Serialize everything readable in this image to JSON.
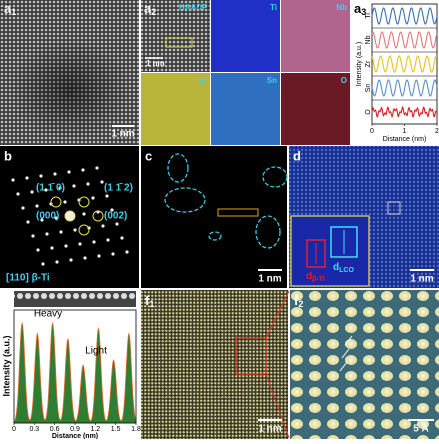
{
  "panels": {
    "a1": {
      "label": "a",
      "sub": "1",
      "scale": "1 nm"
    },
    "a2": {
      "label": "a",
      "sub": "2",
      "maps": [
        "HAADF",
        "Ti",
        "Nb",
        "Zr",
        "Sn",
        "O"
      ],
      "scale": "1 nm"
    },
    "a3": {
      "label": "a",
      "sub": "3"
    },
    "b": {
      "label": "b",
      "spots": [
        "(1 1̄ 0)",
        "(1 1̄ 2)",
        "(000)",
        "(002)"
      ],
      "zone": "[110] β-Ti"
    },
    "c": {
      "label": "c",
      "scale": "1 nm"
    },
    "d": {
      "label": "d",
      "scale": "1 nm",
      "d1": "d",
      "d1sub": "β-Ti",
      "d2": "d",
      "d2sub": "LCO"
    },
    "e": {
      "label": "e"
    },
    "f1": {
      "label": "f",
      "sub": "1",
      "scale": "1 nm"
    },
    "f2": {
      "label": "f",
      "sub": "2",
      "scale": "5 Å"
    }
  },
  "chart_data": [
    {
      "type": "line",
      "ylabel": "Intensity (a.u.)",
      "xlabel": "Distance (nm)",
      "xlim": [
        0,
        2
      ],
      "xticks": [
        0,
        1,
        2
      ],
      "series": [
        {
          "name": "Ti",
          "color": "#3a6fb0"
        },
        {
          "name": "Nb",
          "color": "#e07a7a"
        },
        {
          "name": "Zr",
          "color": "#e8c21a"
        },
        {
          "name": "Sn",
          "color": "#5b8fc4"
        },
        {
          "name": "O",
          "color": "#d62020"
        }
      ]
    },
    {
      "type": "area",
      "ylabel": "Intensity (a.u.)",
      "xlabel": "Distance (nm)",
      "xlim": [
        0,
        1.8
      ],
      "xticks": [
        0,
        0.3,
        0.6,
        0.9,
        1.2,
        1.5,
        1.8
      ],
      "annotations": [
        "Heavy",
        "Light"
      ],
      "color": "#2f7d32"
    }
  ]
}
